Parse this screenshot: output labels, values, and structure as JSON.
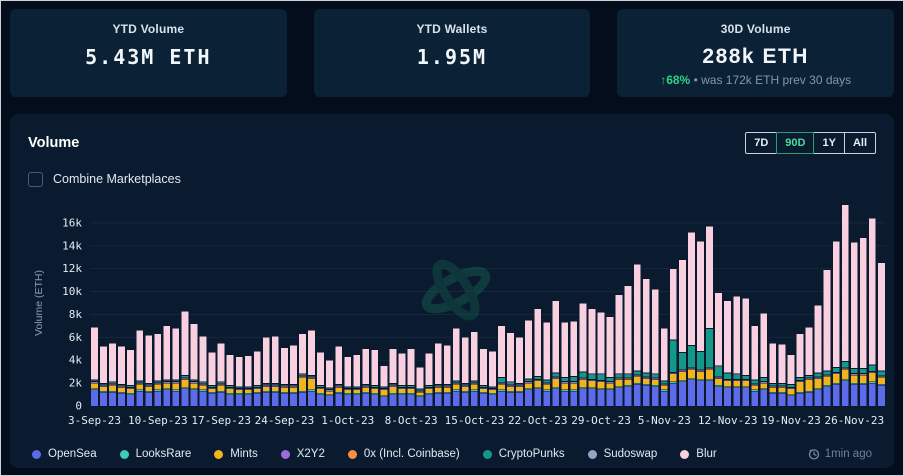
{
  "cards": [
    {
      "title": "YTD Volume",
      "value": "5.43M ETH"
    },
    {
      "title": "YTD Wallets",
      "value": "1.95M"
    },
    {
      "title": "30D Volume",
      "value": "288k ETH",
      "change_arrow": "↑",
      "change_pct": "68%",
      "change_note": "• was 172k ETH prev 30 days"
    }
  ],
  "panel": {
    "title": "Volume",
    "combine_label": "Combine Marketplaces",
    "ranges": [
      "7D",
      "90D",
      "1Y",
      "All"
    ],
    "active_range": "90D",
    "updated": "1min ago",
    "updated_icon": "clock-refresh-icon"
  },
  "colors": {
    "page_bg": "#040d1b",
    "card_bg": "#0b2135",
    "panel_bg": "#0a1b2f",
    "gridline": "#16283e",
    "axis_text": "#e4ecf4",
    "muted_text": "#8795a6",
    "accent_green": "#2dd283",
    "active_range_green": "#4ade9f"
  },
  "chart_data": {
    "type": "bar",
    "stacked": true,
    "title": "Volume",
    "ylabel": "Volume (ETH)",
    "unit": "k ETH",
    "ylim": [
      0,
      18
    ],
    "y_ticks": [
      "0",
      "2k",
      "4k",
      "6k",
      "8k",
      "10k",
      "12k",
      "14k",
      "16k"
    ],
    "y_tick_step_k": 2,
    "grid": true,
    "legend_position": "bottom",
    "num_bars": 88,
    "date_range": [
      "3-Sep-23",
      "29-Nov-23"
    ],
    "x_tick_every": 7,
    "x_tick_labels": [
      "3-Sep-23",
      "10-Sep-23",
      "17-Sep-23",
      "24-Sep-23",
      "1-Oct-23",
      "8-Oct-23",
      "15-Oct-23",
      "22-Oct-23",
      "29-Oct-23",
      "5-Nov-23",
      "12-Nov-23",
      "19-Nov-23",
      "26-Nov-23"
    ],
    "series": [
      {
        "name": "OpenSea",
        "color": "#5c6bea",
        "values": [
          1.4,
          1.2,
          1.2,
          1.1,
          1.0,
          1.3,
          1.2,
          1.3,
          1.4,
          1.3,
          1.5,
          1.4,
          1.3,
          1.1,
          1.2,
          1.0,
          1.0,
          1.0,
          1.1,
          1.2,
          1.2,
          1.1,
          1.1,
          1.2,
          1.3,
          1.0,
          0.9,
          1.1,
          1.0,
          1.0,
          1.1,
          1.0,
          0.8,
          1.0,
          1.0,
          1.0,
          0.8,
          1.0,
          1.1,
          1.1,
          1.3,
          1.2,
          1.3,
          1.1,
          1.0,
          1.3,
          1.2,
          1.2,
          1.4,
          1.5,
          1.3,
          1.5,
          1.3,
          1.3,
          1.5,
          1.5,
          1.4,
          1.4,
          1.6,
          1.7,
          1.9,
          1.8,
          1.7,
          1.3,
          2.0,
          2.1,
          2.3,
          2.2,
          2.2,
          1.7,
          1.6,
          1.6,
          1.6,
          1.3,
          1.4,
          1.1,
          1.1,
          0.9,
          1.1,
          1.2,
          1.4,
          1.7,
          1.9,
          2.2,
          1.9,
          1.9,
          2.0,
          1.8
        ]
      },
      {
        "name": "LooksRare",
        "color": "#3ec9ba",
        "values": 0.1
      },
      {
        "name": "Mints",
        "color": "#f0b41e",
        "values": [
          0.5,
          0.4,
          0.5,
          0.4,
          0.4,
          0.5,
          0.4,
          0.5,
          0.5,
          0.6,
          0.7,
          0.5,
          0.4,
          0.3,
          0.5,
          0.4,
          0.3,
          0.3,
          0.3,
          0.4,
          0.4,
          0.4,
          0.4,
          1.2,
          1.0,
          0.4,
          0.3,
          0.4,
          0.3,
          0.3,
          0.4,
          0.4,
          0.5,
          0.6,
          0.4,
          0.4,
          0.3,
          0.4,
          0.4,
          0.4,
          0.5,
          0.4,
          0.5,
          0.3,
          0.3,
          0.5,
          0.4,
          0.4,
          0.5,
          0.6,
          0.5,
          0.8,
          0.6,
          0.6,
          0.7,
          0.6,
          0.6,
          0.5,
          0.6,
          0.5,
          0.6,
          0.5,
          0.5,
          0.4,
          0.7,
          0.8,
          0.8,
          0.7,
          0.9,
          0.6,
          0.5,
          0.5,
          0.5,
          0.4,
          0.5,
          0.4,
          0.4,
          0.5,
          0.9,
          1.0,
          0.9,
          0.8,
          0.8,
          0.9,
          0.7,
          0.7,
          0.8,
          0.6
        ]
      },
      {
        "name": "X2Y2",
        "color": "#9e6bdd",
        "values": 0.1
      },
      {
        "name": "0x (Incl. Coinbase)",
        "color": "#f59042",
        "values": 0.05
      },
      {
        "name": "CryptoPunks",
        "color": "#14988a",
        "values": [
          0.1,
          0.1,
          0.1,
          0.1,
          0.1,
          0.1,
          0.1,
          0.1,
          0.1,
          0.1,
          0.2,
          0.1,
          0.1,
          0.1,
          0.1,
          0.1,
          0.1,
          0.1,
          0.1,
          0.1,
          0.1,
          0.1,
          0.1,
          0.1,
          0.1,
          0.1,
          0.1,
          0.1,
          0.1,
          0.1,
          0.1,
          0.1,
          0.1,
          0.1,
          0.1,
          0.1,
          0.1,
          0.1,
          0.1,
          0.1,
          0.1,
          0.1,
          0.1,
          0.1,
          0.1,
          0.4,
          0.2,
          0.1,
          0.2,
          0.2,
          0.2,
          0.3,
          0.3,
          0.4,
          0.5,
          0.4,
          0.5,
          0.3,
          0.3,
          0.3,
          0.3,
          0.3,
          0.3,
          0.2,
          2.8,
          1.5,
          1.9,
          1.6,
          3.4,
          0.9,
          0.5,
          0.4,
          0.3,
          0.3,
          0.3,
          0.2,
          0.2,
          0.2,
          0.2,
          0.2,
          0.3,
          0.3,
          0.4,
          0.5,
          0.4,
          0.4,
          0.5,
          0.4
        ]
      },
      {
        "name": "Sudoswap",
        "color": "#98a2c8",
        "values": 0.05
      },
      {
        "name": "Blur",
        "color": "#f8d0e0",
        "values": [
          4.6,
          3.2,
          3.4,
          3.3,
          3.1,
          4.4,
          4.2,
          4.1,
          4.7,
          4.5,
          5.6,
          4.9,
          4.0,
          2.9,
          3.4,
          2.7,
          2.6,
          2.7,
          3.0,
          4.0,
          4.1,
          3.2,
          3.4,
          3.5,
          3.9,
          2.9,
          2.4,
          3.3,
          2.6,
          2.8,
          3.1,
          3.1,
          1.8,
          3.0,
          2.8,
          3.2,
          1.9,
          2.8,
          3.6,
          3.4,
          4.6,
          4.0,
          4.3,
          3.2,
          3.1,
          4.5,
          4.3,
          4.0,
          5.1,
          5.9,
          5.0,
          6.3,
          4.8,
          4.8,
          6.0,
          5.7,
          5.4,
          5.3,
          6.9,
          7.7,
          9.3,
          8.2,
          7.4,
          4.6,
          6.2,
          8.1,
          9.9,
          9.6,
          8.9,
          6.4,
          6.3,
          6.8,
          6.7,
          4.7,
          5.6,
          3.5,
          3.4,
          2.6,
          3.8,
          4.2,
          5.9,
          8.8,
          11.0,
          13.7,
          11.0,
          11.4,
          12.8,
          9.4
        ]
      }
    ]
  }
}
